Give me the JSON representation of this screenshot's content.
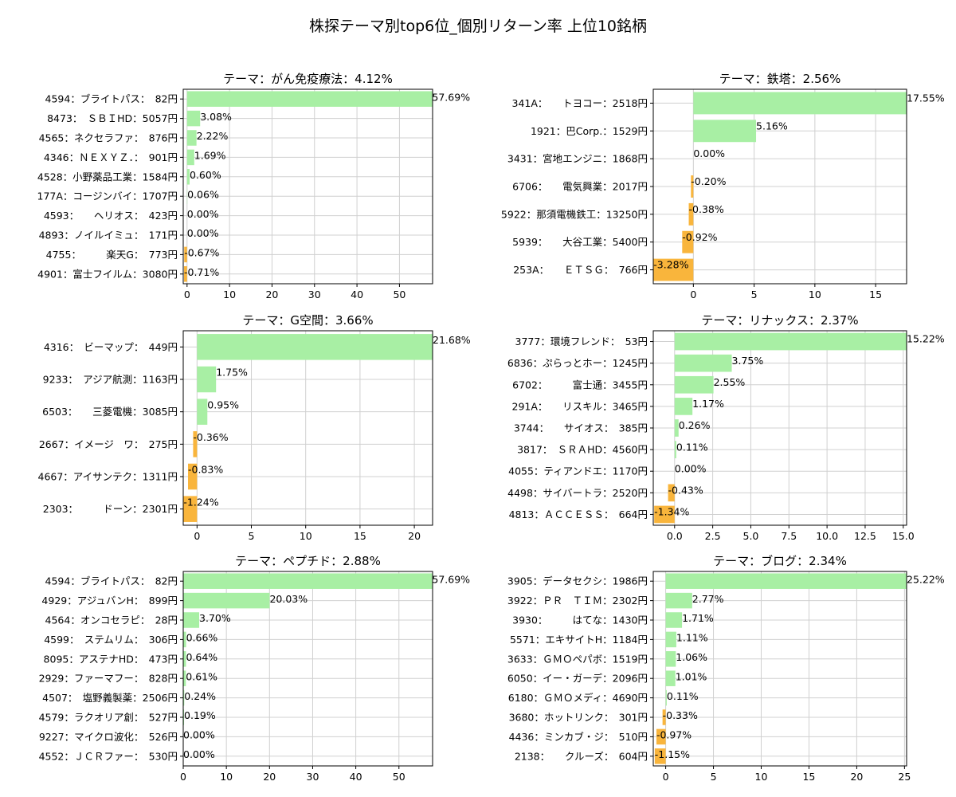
{
  "figure_title": "株探テーマ別top6位_個別リターン率 上位10銘柄",
  "colors": {
    "positive": "#a8efa4",
    "negative": "#f9b53c",
    "grid": "#d0d0d0"
  },
  "chart_data": [
    {
      "type": "bar",
      "orientation": "horizontal",
      "title": "テーマ：がん免疫療法：4.12%",
      "categories": [
        "4594：ブライトパス：　82円",
        "8473：　ＳＢＩHD：5057円",
        "4565：ネクセラファ：　876円",
        "4346：ＮＥＸＹＺ．：　901円",
        "4528：小野薬品工業：1584円",
        "177A：コージンバイ：1707円",
        "4593：　　ヘリオス：　423円",
        "4893：ノイルイミュ：　171円",
        "4755：　　　楽天G：　773円",
        "4901：富士フイルム：3080円"
      ],
      "values": [
        57.69,
        3.08,
        2.22,
        1.69,
        0.6,
        0.06,
        0.0,
        0.0,
        -0.67,
        -0.71
      ],
      "value_labels": [
        "57.69%",
        "3.08%",
        "2.22%",
        "1.69%",
        "0.60%",
        "0.06%",
        "0.00%",
        "0.00%",
        "-0.67%",
        "-0.71%"
      ],
      "xlim": [
        -0.9,
        57.8
      ],
      "xticks": [
        0,
        10,
        20,
        30,
        40,
        50
      ],
      "grid": true
    },
    {
      "type": "bar",
      "orientation": "horizontal",
      "title": "テーマ：鉄塔：2.56%",
      "categories": [
        "341A：　　トヨコー：2518円",
        "1921：巴Corp.：1529円",
        "3431：宮地エンジニ：1868円",
        "6706：　　電気興業：2017円",
        "5922：那須電機鉄工：13250円",
        "5939：　　大谷工業：5400円",
        "253A：　　ＥＴＳＧ：　766円"
      ],
      "values": [
        17.55,
        5.16,
        0.0,
        -0.2,
        -0.38,
        -0.92,
        -3.28
      ],
      "value_labels": [
        "17.55%",
        "5.16%",
        "0.00%",
        "-0.20%",
        "-0.38%",
        "-0.92%",
        "-3.28%"
      ],
      "xlim": [
        -3.3,
        17.55
      ],
      "xticks": [
        0,
        5,
        10,
        15
      ],
      "grid": true
    },
    {
      "type": "bar",
      "orientation": "horizontal",
      "title": "テーマ：G空間：3.66%",
      "categories": [
        "4316：　ビーマップ：　449円",
        "9233：　アジア航測：1163円",
        "6503：　　三菱電機：3085円",
        "2667：イメージ　ワ：　275円",
        "4667：アイサンテク：1311円",
        "2303：　　　ドーン：2301円"
      ],
      "values": [
        21.68,
        1.75,
        0.95,
        -0.36,
        -0.83,
        -1.24
      ],
      "value_labels": [
        "21.68%",
        "1.75%",
        "0.95%",
        "-0.36%",
        "-0.83%",
        "-1.24%"
      ],
      "xlim": [
        -1.27,
        21.68
      ],
      "xticks": [
        0,
        5,
        10,
        15,
        20
      ],
      "grid": true
    },
    {
      "type": "bar",
      "orientation": "horizontal",
      "title": "テーマ：リナックス：2.37%",
      "categories": [
        "3777：環境フレンド：　53円",
        "6836：ぷらっとホー：1245円",
        "6702：　　　富士通：3455円",
        "291A：　　リスキル：3465円",
        "3744：　　サイオス：　385円",
        "3817：　ＳＲＡHD：4560円",
        "4055：ティアンドエ：1170円",
        "4498：サイバートラ：2520円",
        "4813：ＡＣＣＥＳＳ：　664円"
      ],
      "values": [
        15.22,
        3.75,
        2.55,
        1.17,
        0.26,
        0.11,
        0.0,
        -0.43,
        -1.34
      ],
      "value_labels": [
        "15.22%",
        "3.75%",
        "2.55%",
        "1.17%",
        "0.26%",
        "0.11%",
        "0.00%",
        "-0.43%",
        "-1.34%"
      ],
      "xlim": [
        -1.4,
        15.22
      ],
      "xticks": [
        0.0,
        2.5,
        5.0,
        7.5,
        10.0,
        12.5,
        15.0
      ],
      "tick_labels": [
        "0.0",
        "2.5",
        "5.0",
        "7.5",
        "10.0",
        "12.5",
        "15.0"
      ],
      "grid": true
    },
    {
      "type": "bar",
      "orientation": "horizontal",
      "title": "テーマ：ペプチド：2.88%",
      "categories": [
        "4594：ブライトパス：　82円",
        "4929：アジュバンH：　899円",
        "4564：オンコセラピ：　28円",
        "4599：　ステムリム：　306円",
        "8095：アステナHD：　473円",
        "2929：ファーマフー：　828円",
        "4507：　塩野義製薬：2506円",
        "4579：ラクオリア創：　527円",
        "9227：マイクロ波化：　526円",
        "4552：ＪＣＲファー：　530円"
      ],
      "values": [
        57.69,
        20.03,
        3.7,
        0.66,
        0.64,
        0.61,
        0.24,
        0.19,
        0.0,
        0.0
      ],
      "value_labels": [
        "57.69%",
        "20.03%",
        "3.70%",
        "0.66%",
        "0.64%",
        "0.61%",
        "0.24%",
        "0.19%",
        "0.00%",
        "0.00%"
      ],
      "xlim": [
        0,
        57.8
      ],
      "xticks": [
        0,
        10,
        20,
        30,
        40,
        50
      ],
      "grid": true
    },
    {
      "type": "bar",
      "orientation": "horizontal",
      "title": "テーマ：ブログ：2.34%",
      "categories": [
        "3905：データセクシ：1986円",
        "3922：ＰＲ　ＴＩＭ：2302円",
        "3930：　　　はてな：1430円",
        "5571：エキサイトH：1184円",
        "3633：ＧＭＯペパボ：1519円",
        "6050：イー・ガーデ：2096円",
        "6180：ＧＭＯメディ：4690円",
        "3680：ホットリンク：　301円",
        "4436：ミンカブ・ジ：　510円",
        "2138：　　クルーズ：　604円"
      ],
      "values": [
        25.22,
        2.77,
        1.71,
        1.11,
        1.06,
        1.01,
        0.11,
        -0.33,
        -0.97,
        -1.15
      ],
      "value_labels": [
        "25.22%",
        "2.77%",
        "1.71%",
        "1.11%",
        "1.06%",
        "1.01%",
        "0.11%",
        "-0.33%",
        "-0.97%",
        "-1.15%"
      ],
      "xlim": [
        -1.3,
        25.22
      ],
      "xticks": [
        0,
        5,
        10,
        15,
        20,
        25
      ],
      "grid": true
    }
  ]
}
